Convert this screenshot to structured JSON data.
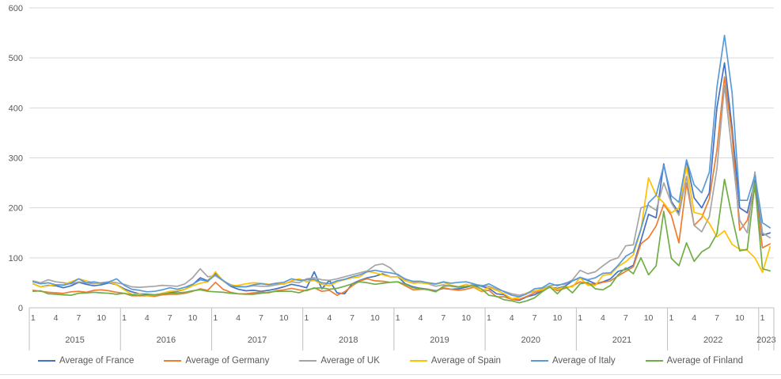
{
  "chart_data": {
    "type": "line",
    "title": "",
    "xlabel": "",
    "ylabel": "",
    "ylim": [
      0,
      600
    ],
    "grid": "horizontal",
    "legend_position": "bottom",
    "y_axis": {
      "ticks": [
        0,
        100,
        200,
        300,
        400,
        500,
        600
      ]
    },
    "x_axis": {
      "month_tick_labels": [
        1,
        4,
        7,
        10
      ],
      "years": [
        {
          "label": "2015",
          "n_months": 12,
          "month_labels": [
            "1",
            "4",
            "7",
            "10"
          ]
        },
        {
          "label": "2016",
          "n_months": 12,
          "month_labels": [
            "1",
            "4",
            "7",
            "10"
          ]
        },
        {
          "label": "2017",
          "n_months": 12,
          "month_labels": [
            "1",
            "4",
            "7",
            "10"
          ]
        },
        {
          "label": "2018",
          "n_months": 12,
          "month_labels": [
            "1",
            "4",
            "7",
            "10"
          ]
        },
        {
          "label": "2019",
          "n_months": 12,
          "month_labels": [
            "1",
            "4",
            "7",
            "10"
          ]
        },
        {
          "label": "2020",
          "n_months": 12,
          "month_labels": [
            "1",
            "4",
            "7",
            "10"
          ]
        },
        {
          "label": "2021",
          "n_months": 12,
          "month_labels": [
            "1",
            "4",
            "7",
            "10"
          ]
        },
        {
          "label": "2022",
          "n_months": 12,
          "month_labels": [
            "1",
            "4",
            "7",
            "10"
          ]
        },
        {
          "label": "2023",
          "n_months": 2,
          "month_labels": [
            "1"
          ]
        }
      ]
    },
    "series": [
      {
        "name": "Average of France",
        "color": "#4472C4",
        "values": [
          48,
          42,
          45,
          44,
          40,
          44,
          51,
          47,
          44,
          46,
          50,
          46,
          38,
          32,
          28,
          27,
          26,
          28,
          30,
          33,
          37,
          46,
          60,
          54,
          70,
          54,
          43,
          37,
          34,
          35,
          33,
          35,
          38,
          42,
          47,
          44,
          40,
          72,
          38,
          55,
          30,
          28,
          48,
          55,
          60,
          63,
          68,
          62,
          62,
          48,
          42,
          39,
          37,
          34,
          39,
          37,
          38,
          41,
          45,
          43,
          39,
          28,
          26,
          17,
          15,
          22,
          26,
          34,
          41,
          39,
          43,
          54,
          60,
          55,
          48,
          52,
          58,
          73,
          77,
          85,
          135,
          187,
          180,
          288,
          213,
          190,
          295,
          220,
          200,
          230,
          400,
          490,
          360,
          200,
          190,
          255,
          145,
          150
        ]
      },
      {
        "name": "Average of Germany",
        "color": "#ED7D31",
        "values": [
          35,
          33,
          31,
          30,
          29,
          32,
          33,
          31,
          35,
          36,
          34,
          31,
          29,
          24,
          24,
          24,
          23,
          26,
          27,
          27,
          29,
          33,
          38,
          35,
          51,
          37,
          31,
          28,
          28,
          30,
          31,
          30,
          34,
          36,
          39,
          36,
          34,
          40,
          33,
          35,
          25,
          32,
          44,
          54,
          58,
          54,
          53,
          51,
          52,
          44,
          36,
          37,
          37,
          33,
          40,
          37,
          35,
          37,
          41,
          33,
          35,
          22,
          22,
          17,
          17,
          23,
          30,
          35,
          43,
          34,
          39,
          44,
          52,
          48,
          47,
          51,
          54,
          64,
          73,
          82,
          128,
          140,
          164,
          207,
          185,
          130,
          250,
          165,
          180,
          218,
          315,
          462,
          346,
          155,
          175,
          239,
          120,
          128
        ]
      },
      {
        "name": "Average of UK",
        "color": "#A5A5A5",
        "values": [
          54,
          50,
          56,
          52,
          50,
          48,
          52,
          50,
          48,
          50,
          52,
          50,
          47,
          42,
          41,
          42,
          43,
          45,
          44,
          43,
          48,
          60,
          78,
          62,
          64,
          54,
          46,
          43,
          42,
          44,
          43,
          43,
          46,
          48,
          52,
          50,
          58,
          60,
          56,
          55,
          58,
          62,
          66,
          70,
          74,
          85,
          88,
          80,
          65,
          58,
          52,
          50,
          48,
          43,
          46,
          43,
          41,
          43,
          47,
          45,
          43,
          37,
          33,
          28,
          25,
          29,
          33,
          38,
          44,
          46,
          47,
          56,
          75,
          68,
          72,
          84,
          95,
          100,
          124,
          126,
          200,
          205,
          195,
          250,
          210,
          185,
          263,
          165,
          152,
          182,
          278,
          445,
          310,
          175,
          150,
          272,
          150,
          140
        ]
      },
      {
        "name": "Average of Spain",
        "color": "#FFC000",
        "values": [
          48,
          42,
          44,
          46,
          46,
          52,
          58,
          54,
          50,
          49,
          52,
          46,
          36,
          27,
          28,
          24,
          25,
          29,
          33,
          34,
          37,
          44,
          49,
          52,
          72,
          54,
          44,
          45,
          48,
          50,
          49,
          47,
          49,
          47,
          54,
          58,
          52,
          55,
          47,
          44,
          52,
          56,
          60,
          62,
          73,
          70,
          66,
          62,
          62,
          54,
          49,
          50,
          48,
          47,
          51,
          45,
          42,
          47,
          42,
          34,
          41,
          35,
          28,
          18,
          21,
          30,
          34,
          36,
          42,
          37,
          42,
          42,
          60,
          45,
          45,
          65,
          67,
          83,
          92,
          106,
          156,
          260,
          225,
          210,
          190,
          200,
          283,
          191,
          187,
          169,
          142,
          154,
          127,
          117,
          115,
          100,
          71,
          122
        ]
      },
      {
        "name": "Average of Italy",
        "color": "#5B9BD5",
        "values": [
          52,
          48,
          50,
          46,
          45,
          49,
          58,
          50,
          52,
          49,
          52,
          58,
          45,
          37,
          35,
          32,
          33,
          36,
          40,
          37,
          41,
          47,
          56,
          53,
          66,
          55,
          44,
          42,
          42,
          46,
          48,
          46,
          49,
          51,
          58,
          55,
          56,
          57,
          50,
          48,
          54,
          57,
          62,
          66,
          72,
          75,
          72,
          70,
          67,
          57,
          53,
          53,
          50,
          48,
          52,
          49,
          51,
          52,
          48,
          43,
          48,
          40,
          32,
          25,
          22,
          28,
          38,
          40,
          49,
          44,
          49,
          54,
          61,
          56,
          60,
          69,
          70,
          85,
          103,
          112,
          158,
          210,
          225,
          285,
          224,
          211,
          296,
          246,
          230,
          271,
          441,
          545,
          430,
          215,
          215,
          265,
          170,
          160
        ]
      },
      {
        "name": "Average of Finland",
        "color": "#70AD47",
        "values": [
          33,
          34,
          28,
          27,
          26,
          25,
          29,
          30,
          31,
          30,
          29,
          27,
          29,
          26,
          25,
          26,
          26,
          28,
          29,
          30,
          31,
          34,
          36,
          33,
          32,
          31,
          29,
          28,
          27,
          27,
          29,
          31,
          33,
          33,
          33,
          30,
          36,
          39,
          40,
          37,
          39,
          43,
          48,
          52,
          50,
          47,
          49,
          51,
          52,
          47,
          40,
          38,
          36,
          32,
          43,
          44,
          42,
          43,
          44,
          38,
          25,
          23,
          16,
          14,
          10,
          14,
          20,
          32,
          42,
          28,
          43,
          30,
          48,
          51,
          38,
          36,
          45,
          66,
          80,
          68,
          100,
          66,
          84,
          193,
          99,
          84,
          130,
          93,
          112,
          121,
          148,
          257,
          182,
          114,
          117,
          249,
          78,
          74
        ]
      }
    ],
    "style": {
      "gridline_color": "#D9D9D9",
      "axis_line_color": "#BFBFBF",
      "tick_label_color": "#595959",
      "line_width": 1.7
    }
  }
}
